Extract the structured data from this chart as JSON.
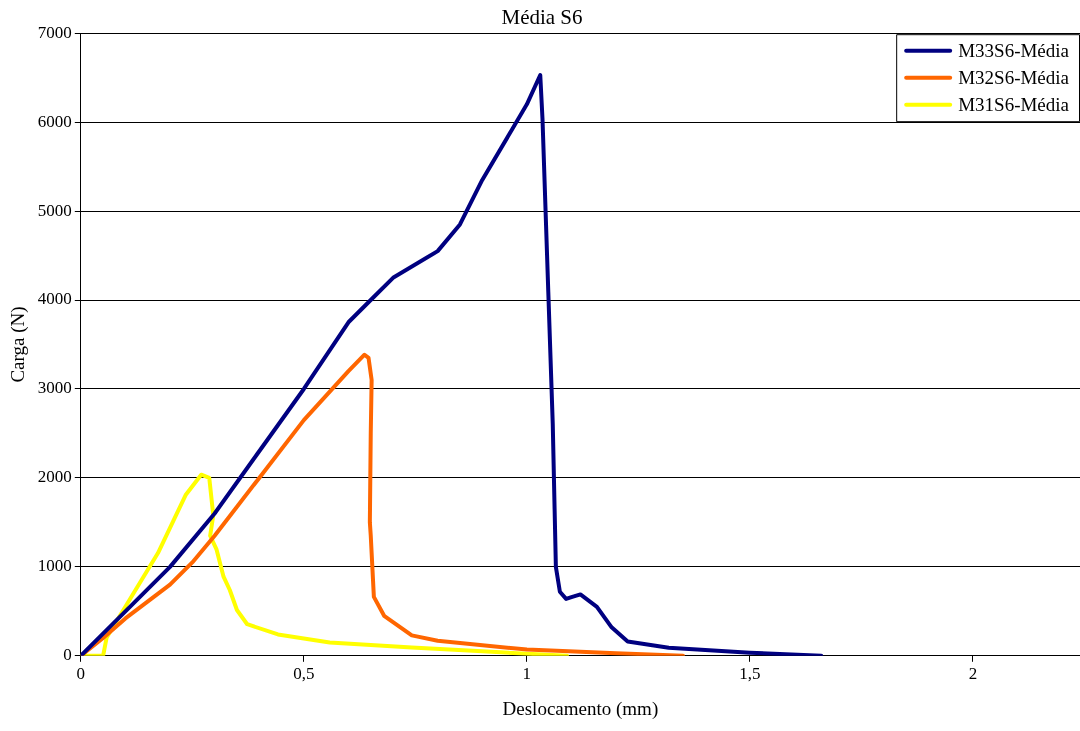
{
  "chart_data": {
    "type": "line",
    "title": "Média S6",
    "xlabel": "Deslocamento (mm)",
    "ylabel": "Carga (N)",
    "xlim": [
      0,
      2.24
    ],
    "xticks": [
      0,
      {
        "value": 0.5,
        "label": "0,5"
      },
      1,
      {
        "value": 1.5,
        "label": "1,5"
      },
      2
    ],
    "ylim": [
      0,
      7000
    ],
    "yticks": [
      0,
      1000,
      2000,
      3000,
      4000,
      5000,
      6000,
      7000
    ],
    "grid": "y",
    "legend": "top right",
    "marker": "none",
    "line_style": "solid",
    "series": [
      {
        "name": "M33S6-Média",
        "color": "#000080",
        "x": [
          0,
          0.1,
          0.2,
          0.3,
          0.4,
          0.5,
          0.6,
          0.65,
          0.7,
          0.8,
          0.85,
          0.9,
          1.0,
          1.03,
          1.035,
          1.048,
          1.058,
          1.065,
          1.074,
          1.088,
          1.1,
          1.12,
          1.157,
          1.19,
          1.226,
          1.318,
          1.5,
          1.66
        ],
        "values": [
          0,
          500,
          1000,
          1600,
          2300,
          3000,
          3750,
          4000,
          4250,
          4550,
          4850,
          5350,
          6200,
          6530,
          6040,
          4095,
          2610,
          1000,
          720,
          640,
          660,
          690,
          550,
          320,
          160,
          90,
          35,
          0
        ]
      },
      {
        "name": "M32S6-Média",
        "color": "#ff6600",
        "x": [
          0,
          0.05,
          0.1,
          0.2,
          0.25,
          0.3,
          0.4,
          0.5,
          0.6,
          0.636,
          0.645,
          0.652,
          0.65,
          0.648,
          0.65,
          0.657,
          0.68,
          0.742,
          0.8,
          1.0,
          1.2,
          1.35
        ],
        "values": [
          0,
          200,
          420,
          800,
          1050,
          1350,
          2000,
          2650,
          3200,
          3385,
          3350,
          3100,
          2500,
          1500,
          1350,
          663,
          450,
          230,
          170,
          70,
          30,
          0
        ]
      },
      {
        "name": "M31S6-Média",
        "color": "#ffff00",
        "x": [
          0,
          0.05,
          0.058,
          0.173,
          0.235,
          0.27,
          0.288,
          0.297,
          0.29,
          0.304,
          0.32,
          0.334,
          0.35,
          0.373,
          0.442,
          0.558,
          0.742,
          0.9,
          1.09
        ],
        "values": [
          0,
          0,
          206,
          1155,
          1807,
          2036,
          2000,
          1580,
          1350,
          1200,
          890,
          740,
          515,
          355,
          240,
          150,
          92,
          50,
          0
        ]
      }
    ]
  }
}
